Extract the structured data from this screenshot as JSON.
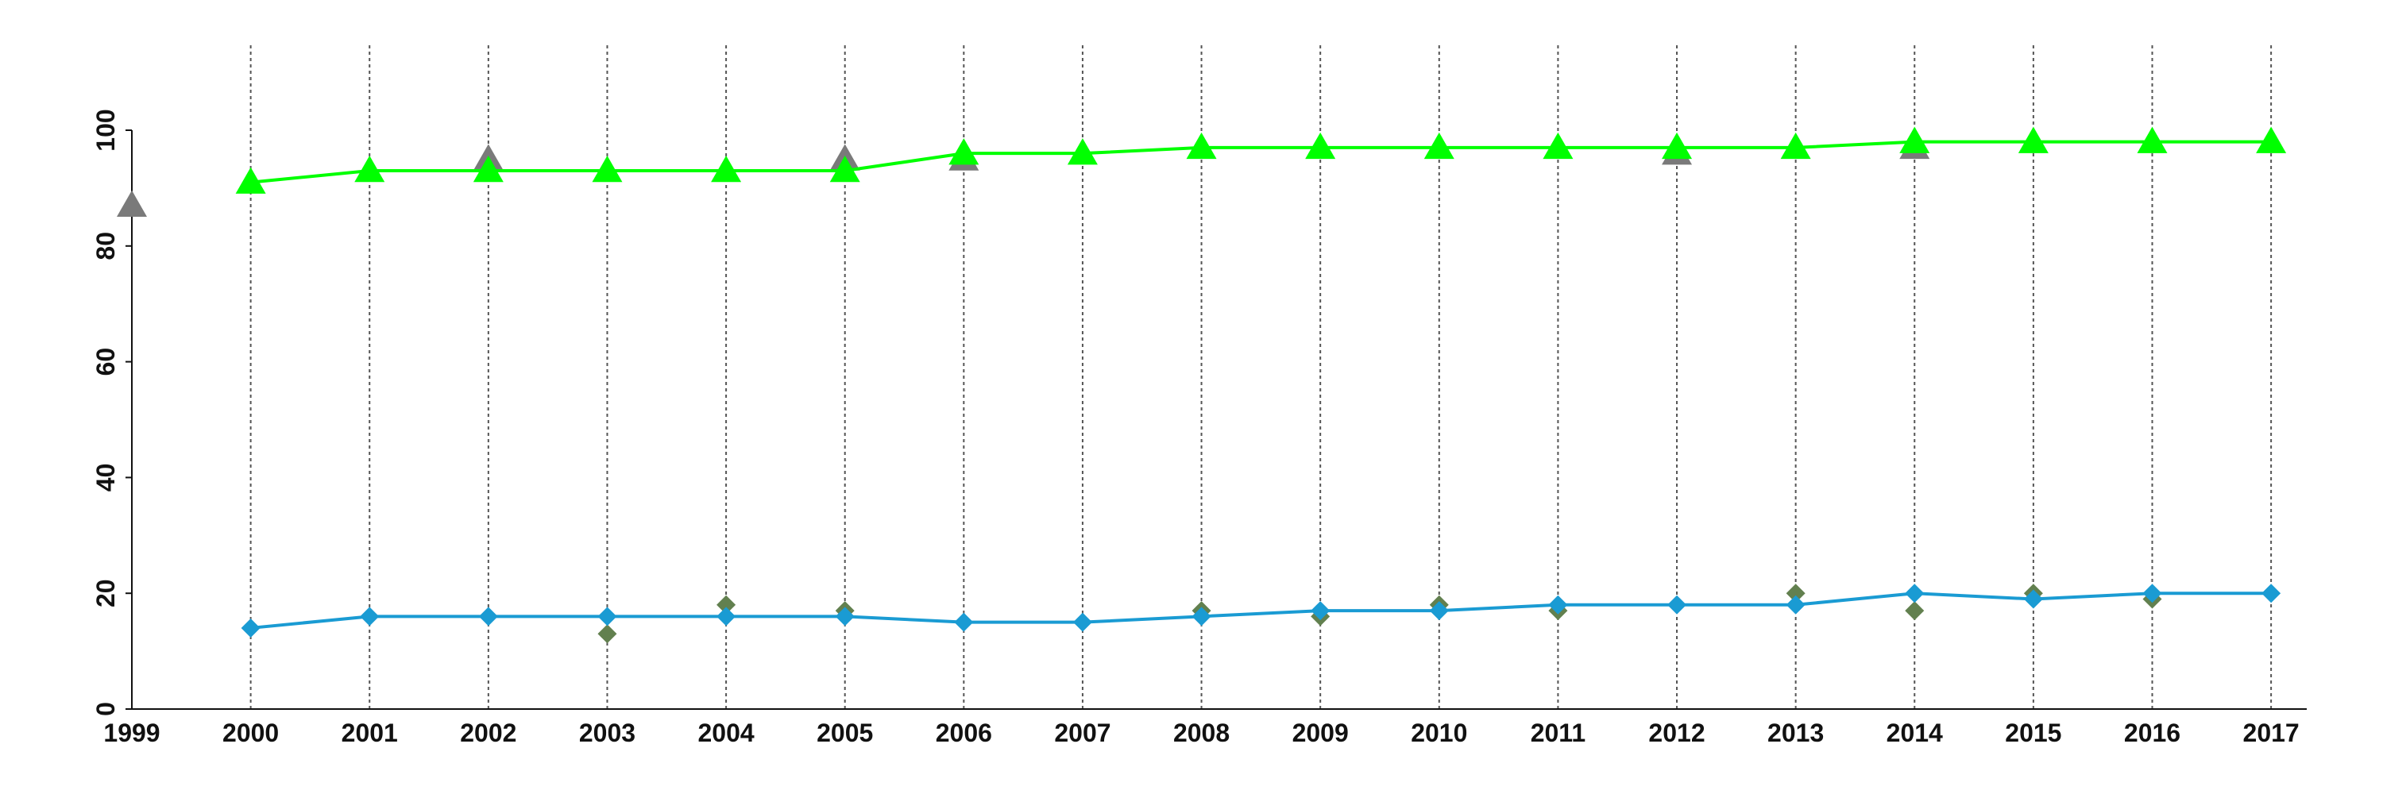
{
  "chart_data": {
    "type": "line",
    "xlim": [
      1999,
      2017.3
    ],
    "xticks": [
      1999,
      2000,
      2001,
      2002,
      2003,
      2004,
      2005,
      2006,
      2007,
      2008,
      2009,
      2010,
      2011,
      2012,
      2013,
      2014,
      2015,
      2016,
      2017
    ],
    "ylim": [
      0,
      100
    ],
    "yticks": [
      0,
      20,
      40,
      60,
      80,
      100
    ],
    "grid": "x",
    "series": [
      {
        "mode": "markers",
        "marker": "triangle",
        "color": "#7a7a7a",
        "x": [
          1999,
          2002,
          2005,
          2006,
          2012,
          2014
        ],
        "values": [
          87,
          95,
          95,
          95,
          96,
          97
        ]
      },
      {
        "mode": "markers",
        "marker": "diamond",
        "color": "#62804f",
        "x": [
          2003,
          2004,
          2005,
          2008,
          2009,
          2010,
          2011,
          2013,
          2014,
          2015,
          2016
        ],
        "values": [
          13,
          18,
          17,
          17,
          16,
          18,
          17,
          20,
          17,
          20,
          19
        ]
      },
      {
        "mode": "lines+markers",
        "marker": "triangle",
        "color": "#00ff00",
        "x": [
          2000,
          2001,
          2002,
          2003,
          2004,
          2005,
          2006,
          2007,
          2008,
          2009,
          2010,
          2011,
          2012,
          2013,
          2014,
          2015,
          2016,
          2017
        ],
        "values": [
          91,
          93,
          93,
          93,
          93,
          93,
          96,
          96,
          97,
          97,
          97,
          97,
          97,
          97,
          98,
          98,
          98,
          98
        ]
      },
      {
        "mode": "lines+markers",
        "marker": "diamond",
        "color": "#1a9bd3",
        "x": [
          2000,
          2001,
          2002,
          2003,
          2004,
          2005,
          2006,
          2007,
          2008,
          2009,
          2010,
          2011,
          2012,
          2013,
          2014,
          2015,
          2016,
          2017
        ],
        "values": [
          14,
          16,
          16,
          16,
          16,
          16,
          15,
          15,
          16,
          17,
          17,
          18,
          18,
          18,
          20,
          19,
          20,
          20
        ]
      }
    ]
  }
}
